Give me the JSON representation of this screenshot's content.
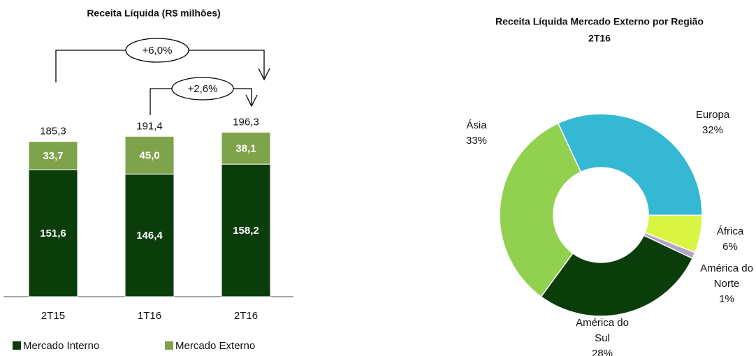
{
  "chart_data": [
    {
      "type": "stacked_bar",
      "title": "Receita Líquida (R$ milhões)",
      "categories": [
        "2T15",
        "1T16",
        "2T16"
      ],
      "series": [
        {
          "name": "Mercado Interno",
          "color": "#0b3d0b",
          "values": [
            151.6,
            146.4,
            158.2
          ],
          "value_labels": [
            "151,6",
            "146,4",
            "158,2"
          ]
        },
        {
          "name": "Mercado Externo",
          "color": "#7fa34a",
          "values": [
            33.7,
            45.0,
            38.1
          ],
          "value_labels": [
            "33,7",
            "45,0",
            "38,1"
          ]
        }
      ],
      "totals": {
        "values": [
          185.3,
          191.4,
          196.3
        ],
        "value_labels": [
          "185,3",
          "191,4",
          "196,3"
        ]
      },
      "annotations": [
        "+6,0%",
        "+2,6%"
      ],
      "ylim": [
        0,
        200
      ]
    },
    {
      "type": "donut",
      "title": "Receita Líquida Mercado Externo por Região",
      "subtitle": "2T16",
      "categories": [
        "Europa",
        "África",
        "América do Norte",
        "América do Sul",
        "Ásia"
      ],
      "values": [
        32,
        6,
        1,
        28,
        33
      ],
      "value_labels": [
        "32%",
        "6%",
        "1%",
        "28%",
        "33%"
      ],
      "colors": [
        "#35b8d3",
        "#d9f542",
        "#b3a3c9",
        "#0b3d0b",
        "#92d050"
      ]
    }
  ]
}
